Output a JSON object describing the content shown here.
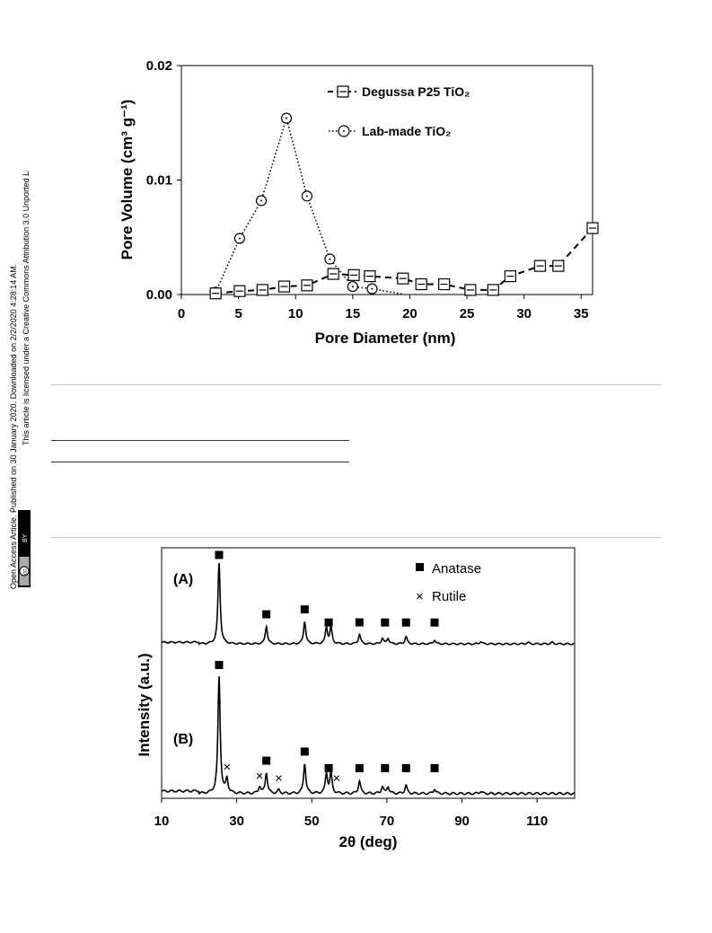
{
  "sidebar": {
    "line1": "Open Access Article. Published on 30 January 2020. Downloaded on 2/2/2020 4:28:14 AM.",
    "line2": "This article is licensed under a Creative Commons Attribution 3.0 Unported Licence.",
    "badge_cc": "cc",
    "badge_by": "BY"
  },
  "chart_data": [
    {
      "type": "line",
      "xlabel": "Pore Diameter (nm)",
      "ylabel": "Pore Volume  (cm³ g⁻¹)",
      "xlim": [
        0,
        36
      ],
      "ylim": [
        0,
        0.02
      ],
      "x_ticks": [
        "0",
        "5",
        "10",
        "15",
        "20",
        "25",
        "30",
        "35"
      ],
      "y_ticks": [
        "0.00",
        "0.01",
        "0.02"
      ],
      "legend_position": "top-right",
      "series": [
        {
          "name": "Degussa P25 TiO₂",
          "marker": "square",
          "line": "dashed",
          "x": [
            3,
            5.1,
            7.1,
            9.0,
            11.0,
            13.3,
            15.1,
            16.5,
            19.4,
            21.0,
            23.0,
            25.3,
            27.3,
            28.8,
            31.4,
            33.0,
            36.0
          ],
          "y": [
            0.0001,
            0.0003,
            0.0004,
            0.0007,
            0.0008,
            0.0018,
            0.0017,
            0.0016,
            0.0014,
            0.0009,
            0.0009,
            0.0004,
            0.0004,
            0.0016,
            0.0025,
            0.0025,
            0.0058
          ]
        },
        {
          "name": "Lab-made TiO₂",
          "marker": "circle-dot",
          "line": "dotted",
          "x": [
            3,
            5.1,
            7.0,
            9.2,
            11.0,
            13.0,
            15.0,
            16.7
          ],
          "y": [
            0.0002,
            0.0049,
            0.0082,
            0.0154,
            0.0086,
            0.0031,
            0.0007,
            0.0005
          ]
        }
      ],
      "dotted_tail_x": [
        16.7,
        19.5
      ],
      "dotted_tail_y": [
        0.0005,
        0.0
      ]
    },
    {
      "type": "line",
      "xlabel": "2θ  (deg)",
      "ylabel": "Intensity  (a.u.)",
      "xlim": [
        10,
        120
      ],
      "x_ticks": [
        "10",
        "30",
        "50",
        "70",
        "90",
        "110"
      ],
      "legend_position": "top-right",
      "legend": [
        {
          "name": "Anatase",
          "marker": "filled-square"
        },
        {
          "name": "Rutile",
          "marker": "cross"
        }
      ],
      "panels": [
        {
          "label": "(A)",
          "baseline": 0.0,
          "peaks": [
            {
              "x": 25.3,
              "h": 1.0
            },
            {
              "x": 37.9,
              "h": 0.22
            },
            {
              "x": 48.1,
              "h": 0.28
            },
            {
              "x": 53.9,
              "h": 0.2
            },
            {
              "x": 55.1,
              "h": 0.2
            },
            {
              "x": 62.7,
              "h": 0.12
            },
            {
              "x": 68.8,
              "h": 0.07
            },
            {
              "x": 70.3,
              "h": 0.07
            },
            {
              "x": 75.1,
              "h": 0.09
            },
            {
              "x": 82.7,
              "h": 0.05
            },
            {
              "x": 95.0,
              "h": 0.03
            },
            {
              "x": 107.5,
              "h": 0.02
            },
            {
              "x": 114.0,
              "h": 0.02
            }
          ],
          "anatase_marks_x": [
            25.3,
            37.9,
            48.1,
            54.5,
            62.7,
            69.5,
            75.1,
            82.7
          ],
          "rutile_marks_x": []
        },
        {
          "label": "(B)",
          "baseline": 0.0,
          "peaks": [
            {
              "x": 25.3,
              "h": 1.0
            },
            {
              "x": 27.4,
              "h": 0.12
            },
            {
              "x": 36.1,
              "h": 0.06
            },
            {
              "x": 37.9,
              "h": 0.18
            },
            {
              "x": 41.2,
              "h": 0.03
            },
            {
              "x": 48.1,
              "h": 0.26
            },
            {
              "x": 53.9,
              "h": 0.17
            },
            {
              "x": 55.1,
              "h": 0.17
            },
            {
              "x": 62.7,
              "h": 0.11
            },
            {
              "x": 68.8,
              "h": 0.06
            },
            {
              "x": 70.3,
              "h": 0.06
            },
            {
              "x": 75.1,
              "h": 0.07
            },
            {
              "x": 82.7,
              "h": 0.04
            },
            {
              "x": 95.0,
              "h": 0.02
            }
          ],
          "anatase_marks_x": [
            25.3,
            37.9,
            48.1,
            54.5,
            62.7,
            69.5,
            75.1,
            82.7
          ],
          "rutile_marks_x": [
            27.4,
            36.1,
            41.2,
            56.6
          ]
        }
      ]
    }
  ]
}
